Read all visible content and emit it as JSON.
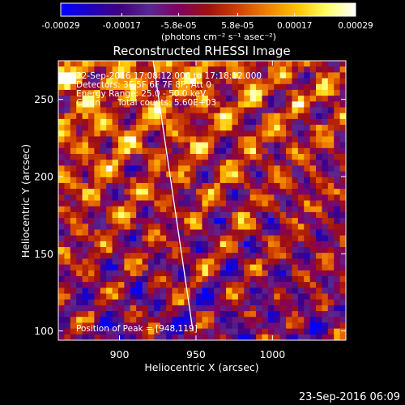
{
  "colorbar": {
    "tick_labels": [
      "-0.00029",
      "-0.00017",
      "-5.8e-05",
      "5.8e-05",
      "0.00017",
      "0.00029"
    ],
    "tick_values": [
      -0.00029,
      -0.00017,
      -5.8e-05,
      5.8e-05,
      0.00017,
      0.00029
    ],
    "range": [
      -0.00029,
      0.00029
    ],
    "units_text": "(photons cm⁻² s⁻¹ asec⁻²)",
    "colormap": [
      "#0000ff",
      "#2000c0",
      "#400080",
      "#5a2890",
      "#800060",
      "#a01010",
      "#d04000",
      "#f08000",
      "#ffc000",
      "#ffff60",
      "#ffffff"
    ]
  },
  "chart_data": {
    "type": "heatmap",
    "title": "Reconstructed RHESSI Image",
    "xlabel": "Heliocentric X (arcsec)",
    "ylabel": "Heliocentric Y (arcsec)",
    "xlim": [
      860,
      1048
    ],
    "ylim": [
      94,
      275
    ],
    "x_ticks": [
      900,
      950,
      1000
    ],
    "y_ticks": [
      100,
      150,
      200,
      250
    ],
    "x_tick_labels": [
      "900",
      "950",
      "1000"
    ],
    "y_tick_labels": [
      "100",
      "150",
      "200",
      "250"
    ],
    "grid": false,
    "limb_line": [
      {
        "x": 922,
        "y": 275
      },
      {
        "x": 948,
        "y": 100
      }
    ],
    "annotations": {
      "time_range": "22-Sep-2016 17:08:12.000 to 17:18:12.000",
      "detectors": "Detectors: 3F 5F 6F 7F 8F, Att 0",
      "energy": "Energy Range: 25.0 - 50.0 keV",
      "method": "Clean",
      "counts": "Total counts: 5.60E+03",
      "peak": "Position of Peak = [948,119]"
    }
  },
  "footer": {
    "timestamp": "23-Sep-2016 06:09"
  }
}
